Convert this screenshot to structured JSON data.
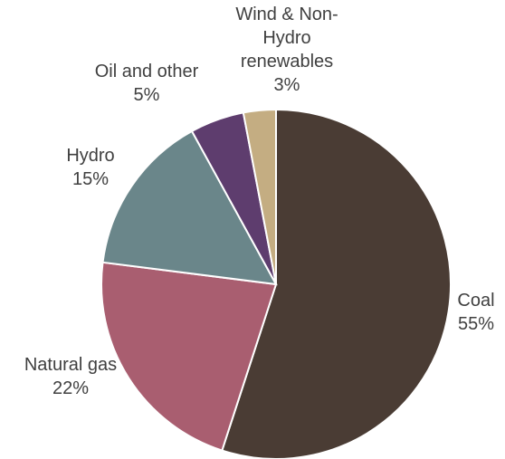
{
  "chart_data": {
    "type": "pie",
    "slices": [
      {
        "name": "Coal",
        "label_text": "55%",
        "value": 55,
        "color": "#4a3c34"
      },
      {
        "name": "Natural gas",
        "label_text": "22%",
        "value": 22,
        "color": "#a95e70"
      },
      {
        "name": "Hydro",
        "label_text": "15%",
        "value": 15,
        "color": "#6a868a"
      },
      {
        "name": "Oil and other",
        "label_text": "5%",
        "value": 5,
        "color": "#5e3d6e"
      },
      {
        "name": "Wind & Non-Hydro renewables",
        "label_lines": [
          "Wind & Non-",
          "Hydro",
          "renewables"
        ],
        "label_text": "3%",
        "value": 3,
        "color": "#c4ad82"
      }
    ],
    "start": "12 o'clock",
    "direction": "clockwise",
    "legend": "none"
  }
}
